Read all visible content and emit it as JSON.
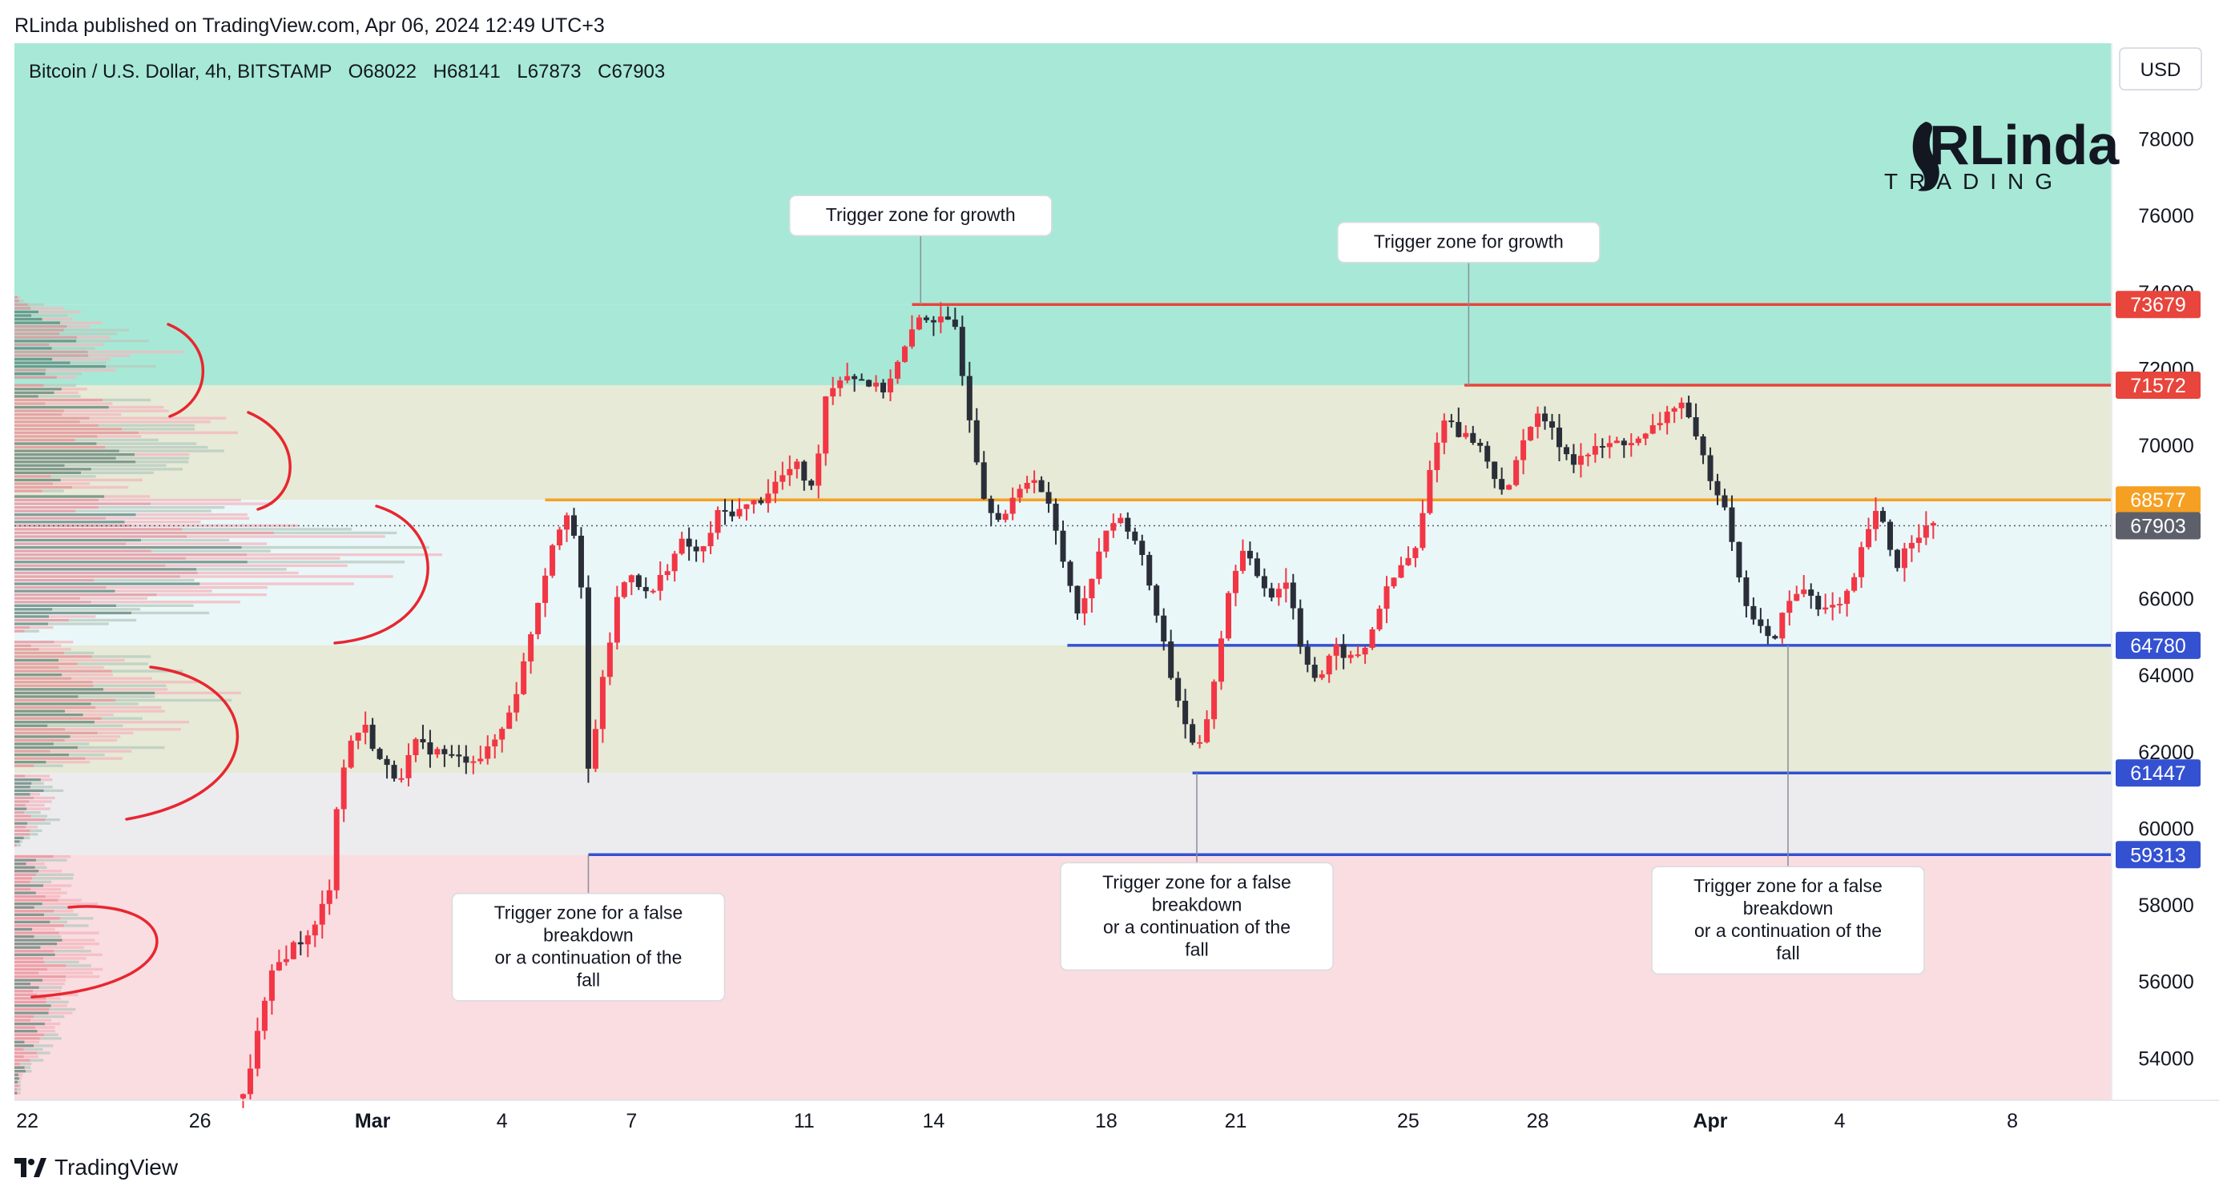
{
  "published": "RLinda published on TradingView.com, Apr 06, 2024 12:49 UTC+3",
  "footer": {
    "brand": "TradingView"
  },
  "currency": "USD",
  "logo": {
    "top": "RLinda",
    "bottom": "TRADING"
  },
  "colors": {
    "up": "#f23645",
    "down": "#2a2e39",
    "resistance": "#e8453c",
    "support": "#3451d1",
    "pivot": "#f5a023",
    "zone_top": "#a7e9d6",
    "zone_mid": "#e6ead6",
    "zone_light": "#e9f7f8",
    "zone_gray": "#ececef",
    "zone_bottom": "#f9dde1"
  },
  "chart_data": {
    "type": "candlestick",
    "title": "Bitcoin / U.S. Dollar, 4h, BITSTAMP",
    "ohlc_legend": {
      "open": "O68022",
      "high": "H68141",
      "low": "L67873",
      "close": "C67903"
    },
    "y_ticks": [
      54000,
      56000,
      58000,
      60000,
      62000,
      64000,
      66000,
      68000,
      70000,
      72000,
      74000,
      76000,
      78000
    ],
    "ylim": [
      52900,
      80500
    ],
    "x_ticks": [
      {
        "label": "22",
        "day": 0
      },
      {
        "label": "26",
        "day": 4
      },
      {
        "label": "Mar",
        "day": 8
      },
      {
        "label": "4",
        "day": 11
      },
      {
        "label": "7",
        "day": 14
      },
      {
        "label": "11",
        "day": 18
      },
      {
        "label": "14",
        "day": 21
      },
      {
        "label": "18",
        "day": 25
      },
      {
        "label": "21",
        "day": 28
      },
      {
        "label": "25",
        "day": 32
      },
      {
        "label": "28",
        "day": 35
      },
      {
        "label": "Apr",
        "day": 39
      },
      {
        "label": "4",
        "day": 42
      },
      {
        "label": "8",
        "day": 46
      }
    ],
    "xlim": [
      -0.3,
      48.3
    ],
    "current_price": 67903,
    "levels": [
      {
        "label": "73679",
        "value": 73679,
        "kind": "resistance",
        "from_day": 20.5
      },
      {
        "label": "71572",
        "value": 71572,
        "kind": "resistance",
        "from_day": 33.3
      },
      {
        "label": "68577",
        "value": 68577,
        "kind": "pivot",
        "from_day": 12.0
      },
      {
        "label": "64780",
        "value": 64780,
        "kind": "support",
        "from_day": 24.1
      },
      {
        "label": "61447",
        "value": 61447,
        "kind": "support",
        "from_day": 27.0
      },
      {
        "label": "59313",
        "value": 59313,
        "kind": "support",
        "from_day": 13.0
      }
    ],
    "zones": [
      {
        "from": 73679,
        "to": 80500,
        "kind": "zone_top"
      },
      {
        "from": 71572,
        "to": 73679,
        "kind": "zone_top"
      },
      {
        "from": 68577,
        "to": 71572,
        "kind": "zone_mid"
      },
      {
        "from": 64780,
        "to": 68577,
        "kind": "zone_light"
      },
      {
        "from": 61447,
        "to": 64780,
        "kind": "zone_mid"
      },
      {
        "from": 59313,
        "to": 61447,
        "kind": "zone_gray"
      },
      {
        "from": 52900,
        "to": 59313,
        "kind": "zone_bottom"
      }
    ],
    "annotations": [
      {
        "lines": [
          "Trigger zone for growth"
        ],
        "day": 20.7,
        "price": 76000,
        "anchor_price": 73679
      },
      {
        "lines": [
          "Trigger zone for growth"
        ],
        "day": 33.4,
        "price": 75300,
        "anchor_price": 71572
      },
      {
        "lines": [
          "Trigger zone for a false",
          "breakdown",
          "or a continuation of the",
          "fall"
        ],
        "day": 13.0,
        "price": 56900,
        "anchor_price": 59313
      },
      {
        "lines": [
          "Trigger zone for a false",
          "breakdown",
          "or a continuation of the",
          "fall"
        ],
        "day": 27.1,
        "price": 57700,
        "anchor_price": 61447
      },
      {
        "lines": [
          "Trigger zone for a false",
          "breakdown",
          "or a continuation of the",
          "fall"
        ],
        "day": 40.8,
        "price": 57600,
        "anchor_price": 64780
      }
    ],
    "path_anchors": [
      [
        5.0,
        52950
      ],
      [
        5.3,
        54500
      ],
      [
        5.7,
        56300
      ],
      [
        6.2,
        57000
      ],
      [
        6.6,
        57200
      ],
      [
        7.0,
        58500
      ],
      [
        7.2,
        61000
      ],
      [
        7.5,
        62300
      ],
      [
        7.8,
        62700
      ],
      [
        8.2,
        61700
      ],
      [
        8.6,
        61300
      ],
      [
        9.0,
        62200
      ],
      [
        9.5,
        62000
      ],
      [
        10.0,
        61800
      ],
      [
        10.6,
        61900
      ],
      [
        11.0,
        62600
      ],
      [
        11.4,
        63800
      ],
      [
        11.8,
        65800
      ],
      [
        12.2,
        67600
      ],
      [
        12.5,
        68300
      ],
      [
        12.8,
        67100
      ],
      [
        13.0,
        61500
      ],
      [
        13.3,
        63600
      ],
      [
        13.7,
        66200
      ],
      [
        14.0,
        66700
      ],
      [
        14.4,
        66000
      ],
      [
        14.8,
        66800
      ],
      [
        15.2,
        67500
      ],
      [
        15.6,
        67100
      ],
      [
        16.0,
        68200
      ],
      [
        16.5,
        68300
      ],
      [
        17.0,
        68600
      ],
      [
        17.4,
        69100
      ],
      [
        17.8,
        69500
      ],
      [
        18.2,
        68800
      ],
      [
        18.5,
        71300
      ],
      [
        18.9,
        71900
      ],
      [
        19.4,
        71700
      ],
      [
        19.8,
        71400
      ],
      [
        20.2,
        72200
      ],
      [
        20.7,
        73400
      ],
      [
        21.0,
        73300
      ],
      [
        21.5,
        73100
      ],
      [
        21.9,
        70300
      ],
      [
        22.2,
        68500
      ],
      [
        22.6,
        68100
      ],
      [
        23.0,
        68800
      ],
      [
        23.3,
        69300
      ],
      [
        23.7,
        68300
      ],
      [
        24.0,
        67000
      ],
      [
        24.4,
        65500
      ],
      [
        24.8,
        67200
      ],
      [
        25.2,
        68100
      ],
      [
        25.6,
        67800
      ],
      [
        25.9,
        66800
      ],
      [
        26.2,
        65500
      ],
      [
        26.5,
        64000
      ],
      [
        26.9,
        62500
      ],
      [
        27.1,
        61800
      ],
      [
        27.4,
        63200
      ],
      [
        27.8,
        65900
      ],
      [
        28.1,
        67300
      ],
      [
        28.4,
        66800
      ],
      [
        28.8,
        66100
      ],
      [
        29.2,
        66500
      ],
      [
        29.5,
        64800
      ],
      [
        29.9,
        63800
      ],
      [
        30.3,
        64700
      ],
      [
        30.7,
        64400
      ],
      [
        31.0,
        64700
      ],
      [
        31.4,
        66000
      ],
      [
        31.8,
        66800
      ],
      [
        32.2,
        67300
      ],
      [
        32.6,
        70000
      ],
      [
        32.9,
        70800
      ],
      [
        33.2,
        70300
      ],
      [
        33.6,
        70100
      ],
      [
        34.0,
        69200
      ],
      [
        34.3,
        68700
      ],
      [
        34.7,
        70400
      ],
      [
        35.1,
        70800
      ],
      [
        35.4,
        70200
      ],
      [
        35.8,
        69600
      ],
      [
        36.2,
        69800
      ],
      [
        36.6,
        70000
      ],
      [
        37.0,
        70100
      ],
      [
        37.4,
        70100
      ],
      [
        37.8,
        70600
      ],
      [
        38.3,
        71200
      ],
      [
        38.6,
        70300
      ],
      [
        39.0,
        69200
      ],
      [
        39.4,
        68300
      ],
      [
        39.7,
        66200
      ],
      [
        40.0,
        65500
      ],
      [
        40.4,
        64800
      ],
      [
        40.8,
        65900
      ],
      [
        41.2,
        66300
      ],
      [
        41.6,
        65700
      ],
      [
        42.0,
        65800
      ],
      [
        42.3,
        66300
      ],
      [
        42.6,
        67700
      ],
      [
        42.9,
        68300
      ],
      [
        43.3,
        66800
      ],
      [
        43.6,
        67500
      ],
      [
        43.9,
        67800
      ],
      [
        44.2,
        67903
      ]
    ]
  }
}
